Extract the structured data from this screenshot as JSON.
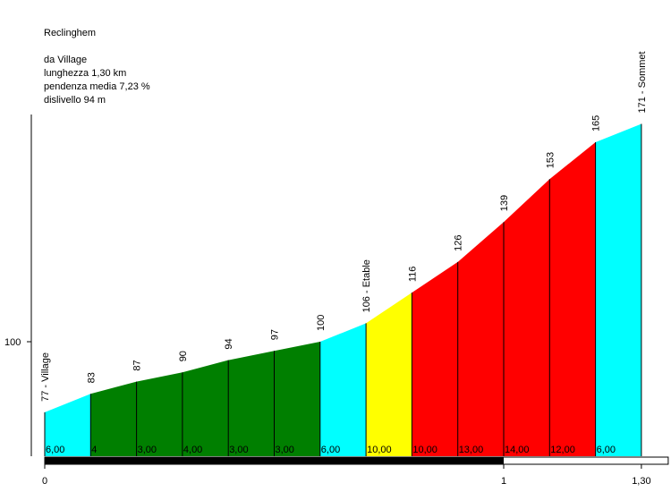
{
  "header": {
    "title": "Reclinghem",
    "from": "da Village",
    "length": "lunghezza 1,30 km",
    "gradient": "pendenza media 7,23 %",
    "elevation_gain": "dislivello 94 m"
  },
  "chart_data": {
    "type": "area",
    "title": "Reclinghem",
    "x_unit": "km",
    "y_unit": "m",
    "x_ticks": [
      {
        "value": 0,
        "label": "0"
      },
      {
        "value": 1,
        "label": "1"
      },
      {
        "value": 1.3,
        "label": "1,30"
      }
    ],
    "y_ticks": [
      {
        "value": 100,
        "label": "100"
      }
    ],
    "points": [
      {
        "x": 0.0,
        "y": 77,
        "label": "77 - Village"
      },
      {
        "x": 0.1,
        "y": 83,
        "label": "83"
      },
      {
        "x": 0.2,
        "y": 87,
        "label": "87"
      },
      {
        "x": 0.3,
        "y": 90,
        "label": "90"
      },
      {
        "x": 0.4,
        "y": 94,
        "label": "94"
      },
      {
        "x": 0.5,
        "y": 97,
        "label": "97"
      },
      {
        "x": 0.6,
        "y": 100,
        "label": "100"
      },
      {
        "x": 0.7,
        "y": 106,
        "label": "106 - Etable"
      },
      {
        "x": 0.8,
        "y": 116,
        "label": "116"
      },
      {
        "x": 0.9,
        "y": 126,
        "label": "126"
      },
      {
        "x": 1.0,
        "y": 139,
        "label": "139"
      },
      {
        "x": 1.1,
        "y": 153,
        "label": "153"
      },
      {
        "x": 1.2,
        "y": 165,
        "label": "165"
      },
      {
        "x": 1.3,
        "y": 171,
        "label": "171 - Sommet"
      }
    ],
    "segments": [
      {
        "gradient_label": "6,00",
        "color": "#00ffff"
      },
      {
        "gradient_label": "4",
        "color": "#007f00"
      },
      {
        "gradient_label": "3,00",
        "color": "#007f00"
      },
      {
        "gradient_label": "4,00",
        "color": "#007f00"
      },
      {
        "gradient_label": "3,00",
        "color": "#007f00"
      },
      {
        "gradient_label": "3,00",
        "color": "#007f00"
      },
      {
        "gradient_label": "6,00",
        "color": "#00ffff"
      },
      {
        "gradient_label": "10,00",
        "color": "#ffff00"
      },
      {
        "gradient_label": "10,00",
        "color": "#ff0000"
      },
      {
        "gradient_label": "13,00",
        "color": "#ff0000"
      },
      {
        "gradient_label": "14,00",
        "color": "#ff0000"
      },
      {
        "gradient_label": "12,00",
        "color": "#ff0000"
      },
      {
        "gradient_label": "6,00",
        "color": "#00ffff"
      }
    ],
    "distance_bar": {
      "filled_to_km": 1.0,
      "fill_color": "#000000"
    }
  }
}
